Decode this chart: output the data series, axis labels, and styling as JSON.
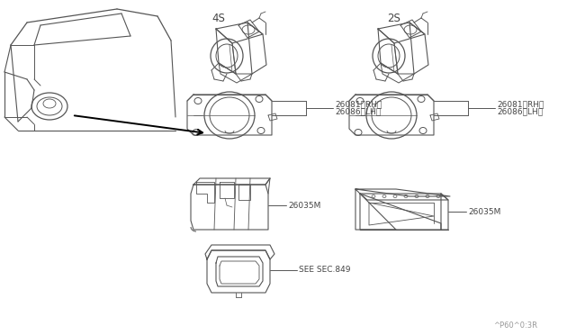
{
  "background_color": "#ffffff",
  "line_color": "#555555",
  "text_color": "#444444",
  "label_4s": "4S",
  "label_2s": "2S",
  "part_26081_rh": "26081（RH）",
  "part_26086_lh": "26086（LH）",
  "part_26035m": "26035M",
  "part_see_sec": "SEE SEC.849",
  "watermark": "^P60^0:3R",
  "fig_width": 6.4,
  "fig_height": 3.72,
  "dpi": 100
}
